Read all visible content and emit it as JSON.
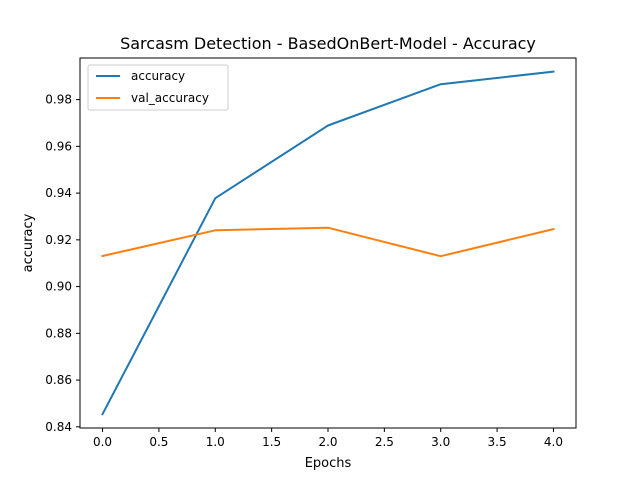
{
  "chart_data": {
    "type": "line",
    "title": "Sarcasm Detection - BasedOnBert-Model - Accuracy",
    "xlabel": "Epochs",
    "ylabel": "accuracy",
    "xlim": [
      -0.2,
      4.2
    ],
    "ylim": [
      0.8395,
      0.9978
    ],
    "xticks": [
      "0.0",
      "0.5",
      "1.0",
      "1.5",
      "2.0",
      "2.5",
      "3.0",
      "3.5",
      "4.0"
    ],
    "yticks": [
      "0.84",
      "0.86",
      "0.88",
      "0.90",
      "0.92",
      "0.94",
      "0.96",
      "0.98"
    ],
    "x": [
      0,
      1,
      2,
      3,
      4
    ],
    "series": [
      {
        "name": "accuracy",
        "color": "#1f77b4",
        "values": [
          0.8454,
          0.9378,
          0.9689,
          0.9866,
          0.992
        ]
      },
      {
        "name": "val_accuracy",
        "color": "#ff7f0e",
        "values": [
          0.9131,
          0.9241,
          0.9252,
          0.913,
          0.9246
        ]
      }
    ],
    "grid": false,
    "legend_position": "upper-left"
  }
}
